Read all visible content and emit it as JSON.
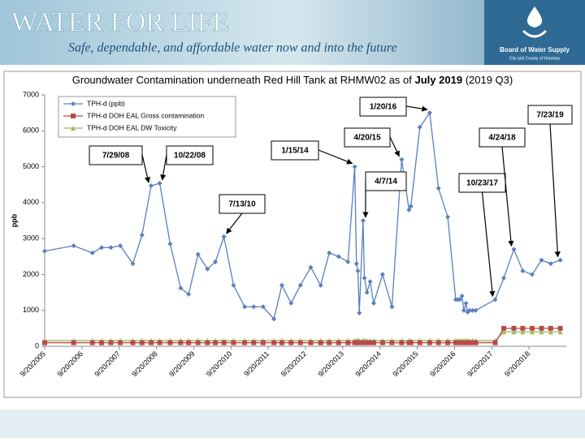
{
  "header": {
    "title": "WATER FOR LIFE",
    "subtitle": "Safe, dependable, and affordable water now and into the future"
  },
  "logo": {
    "line1": "Board of Water Supply",
    "line2": "City and County of Honolulu"
  },
  "chart_data": {
    "type": "line",
    "title": "Groundwater Contamination underneath Red Hill Tank at RHMW02 as of",
    "title_emphasis": "July 2019",
    "title_suffix": "(2019 Q3)",
    "y_label": "ppb",
    "x": [
      "2005-09-20",
      "2006-07-01",
      "2007-01-01",
      "2007-04-01",
      "2007-07-01",
      "2007-10-01",
      "2008-02-01",
      "2008-05-01",
      "2008-07-29",
      "2008-10-22",
      "2009-02-01",
      "2009-05-15",
      "2009-08-01",
      "2009-11-01",
      "2010-02-01",
      "2010-04-20",
      "2010-07-13",
      "2010-10-15",
      "2011-02-01",
      "2011-05-01",
      "2011-08-01",
      "2011-11-15",
      "2012-02-01",
      "2012-05-01",
      "2012-08-01",
      "2012-11-10",
      "2013-02-15",
      "2013-05-10",
      "2013-08-10",
      "2013-11-10",
      "2014-01-15",
      "2014-02-01",
      "2014-02-15",
      "2014-03-01",
      "2014-04-07",
      "2014-04-20",
      "2014-05-15",
      "2014-06-15",
      "2014-07-20",
      "2014-10-15",
      "2015-01-15",
      "2015-04-20",
      "2015-07-01",
      "2015-07-20",
      "2015-10-15",
      "2016-01-20",
      "2016-04-15",
      "2016-07-15",
      "2016-10-01",
      "2016-10-20",
      "2016-11-10",
      "2016-12-01",
      "2016-12-20",
      "2017-01-10",
      "2017-01-25",
      "2017-02-15",
      "2017-03-15",
      "2017-04-15",
      "2017-10-23",
      "2018-01-15",
      "2018-04-24",
      "2018-07-20",
      "2018-10-20",
      "2019-01-20",
      "2019-04-20",
      "2019-07-23"
    ],
    "series": [
      {
        "name": "TPH-d (ppb)",
        "color": "#5a7fbf",
        "marker": "diamond",
        "values": [
          2650,
          2800,
          2600,
          2750,
          2750,
          2800,
          2300,
          3100,
          4470,
          4540,
          2850,
          1620,
          1450,
          2560,
          2150,
          2350,
          3050,
          1700,
          1100,
          1100,
          1100,
          760,
          1700,
          1200,
          1700,
          2200,
          1700,
          2600,
          2500,
          2350,
          5000,
          2300,
          2100,
          930,
          3500,
          1900,
          1500,
          1800,
          1200,
          2000,
          1100,
          5200,
          3800,
          3900,
          6100,
          6500,
          4400,
          3600,
          1300,
          1300,
          1300,
          1400,
          1000,
          1200,
          950,
          1000,
          1000,
          1000,
          1300,
          1900,
          2700,
          2100,
          2000,
          2400,
          2300,
          2400
        ]
      },
      {
        "name": "TPH-d DOH EAL Gross contamination",
        "color": "#b94a48",
        "marker": "square",
        "values": [
          100,
          100,
          100,
          100,
          100,
          100,
          100,
          100,
          100,
          100,
          100,
          100,
          100,
          100,
          100,
          100,
          100,
          100,
          100,
          100,
          100,
          100,
          100,
          100,
          100,
          100,
          100,
          100,
          100,
          100,
          100,
          100,
          100,
          100,
          100,
          100,
          100,
          100,
          100,
          100,
          100,
          100,
          100,
          100,
          100,
          100,
          100,
          100,
          100,
          100,
          100,
          100,
          100,
          100,
          100,
          100,
          100,
          100,
          100,
          500,
          500,
          500,
          500,
          500,
          500,
          500
        ]
      },
      {
        "name": "TPH-d DOH EAL DW Toxicity",
        "color": "#9bbb59",
        "marker": "triangle",
        "values": [
          160,
          160,
          160,
          160,
          160,
          160,
          160,
          160,
          160,
          160,
          160,
          160,
          160,
          160,
          160,
          160,
          160,
          160,
          160,
          160,
          160,
          160,
          160,
          160,
          160,
          160,
          160,
          160,
          160,
          160,
          160,
          160,
          160,
          160,
          160,
          160,
          160,
          160,
          160,
          160,
          160,
          160,
          160,
          160,
          160,
          160,
          160,
          160,
          160,
          160,
          160,
          160,
          160,
          160,
          160,
          160,
          160,
          160,
          160,
          400,
          400,
          400,
          400,
          400,
          400,
          400
        ]
      }
    ],
    "xlim": [
      "2005-09-20",
      "2019-09-20"
    ],
    "xticks": [
      {
        "value": "2005-09-20",
        "label": "9/20/2005"
      },
      {
        "value": "2006-09-20",
        "label": "9/20/2006"
      },
      {
        "value": "2007-09-20",
        "label": "9/20/2007"
      },
      {
        "value": "2008-09-20",
        "label": "9/20/2008"
      },
      {
        "value": "2009-09-20",
        "label": "9/20/2009"
      },
      {
        "value": "2010-09-20",
        "label": "9/20/2010"
      },
      {
        "value": "2011-09-20",
        "label": "9/20/2011"
      },
      {
        "value": "2012-09-20",
        "label": "9/20/2012"
      },
      {
        "value": "2013-09-20",
        "label": "9/20/2013"
      },
      {
        "value": "2014-09-20",
        "label": "9/20/2014"
      },
      {
        "value": "2015-09-20",
        "label": "9/20/2015"
      },
      {
        "value": "2016-09-20",
        "label": "9/20/2016"
      },
      {
        "value": "2017-09-20",
        "label": "9/20/2017"
      },
      {
        "value": "2018-09-20",
        "label": "9/20/2018"
      }
    ],
    "ylim": [
      0,
      7000
    ],
    "yticks": [
      0,
      1000,
      2000,
      3000,
      4000,
      5000,
      6000,
      7000
    ],
    "legend": "upper left",
    "annotations": [
      "7/29/08",
      "10/22/08",
      "7/13/10",
      "1/15/14",
      "4/7/14",
      "4/20/15",
      "1/20/16",
      "10/23/17",
      "4/24/18",
      "7/23/19"
    ]
  }
}
